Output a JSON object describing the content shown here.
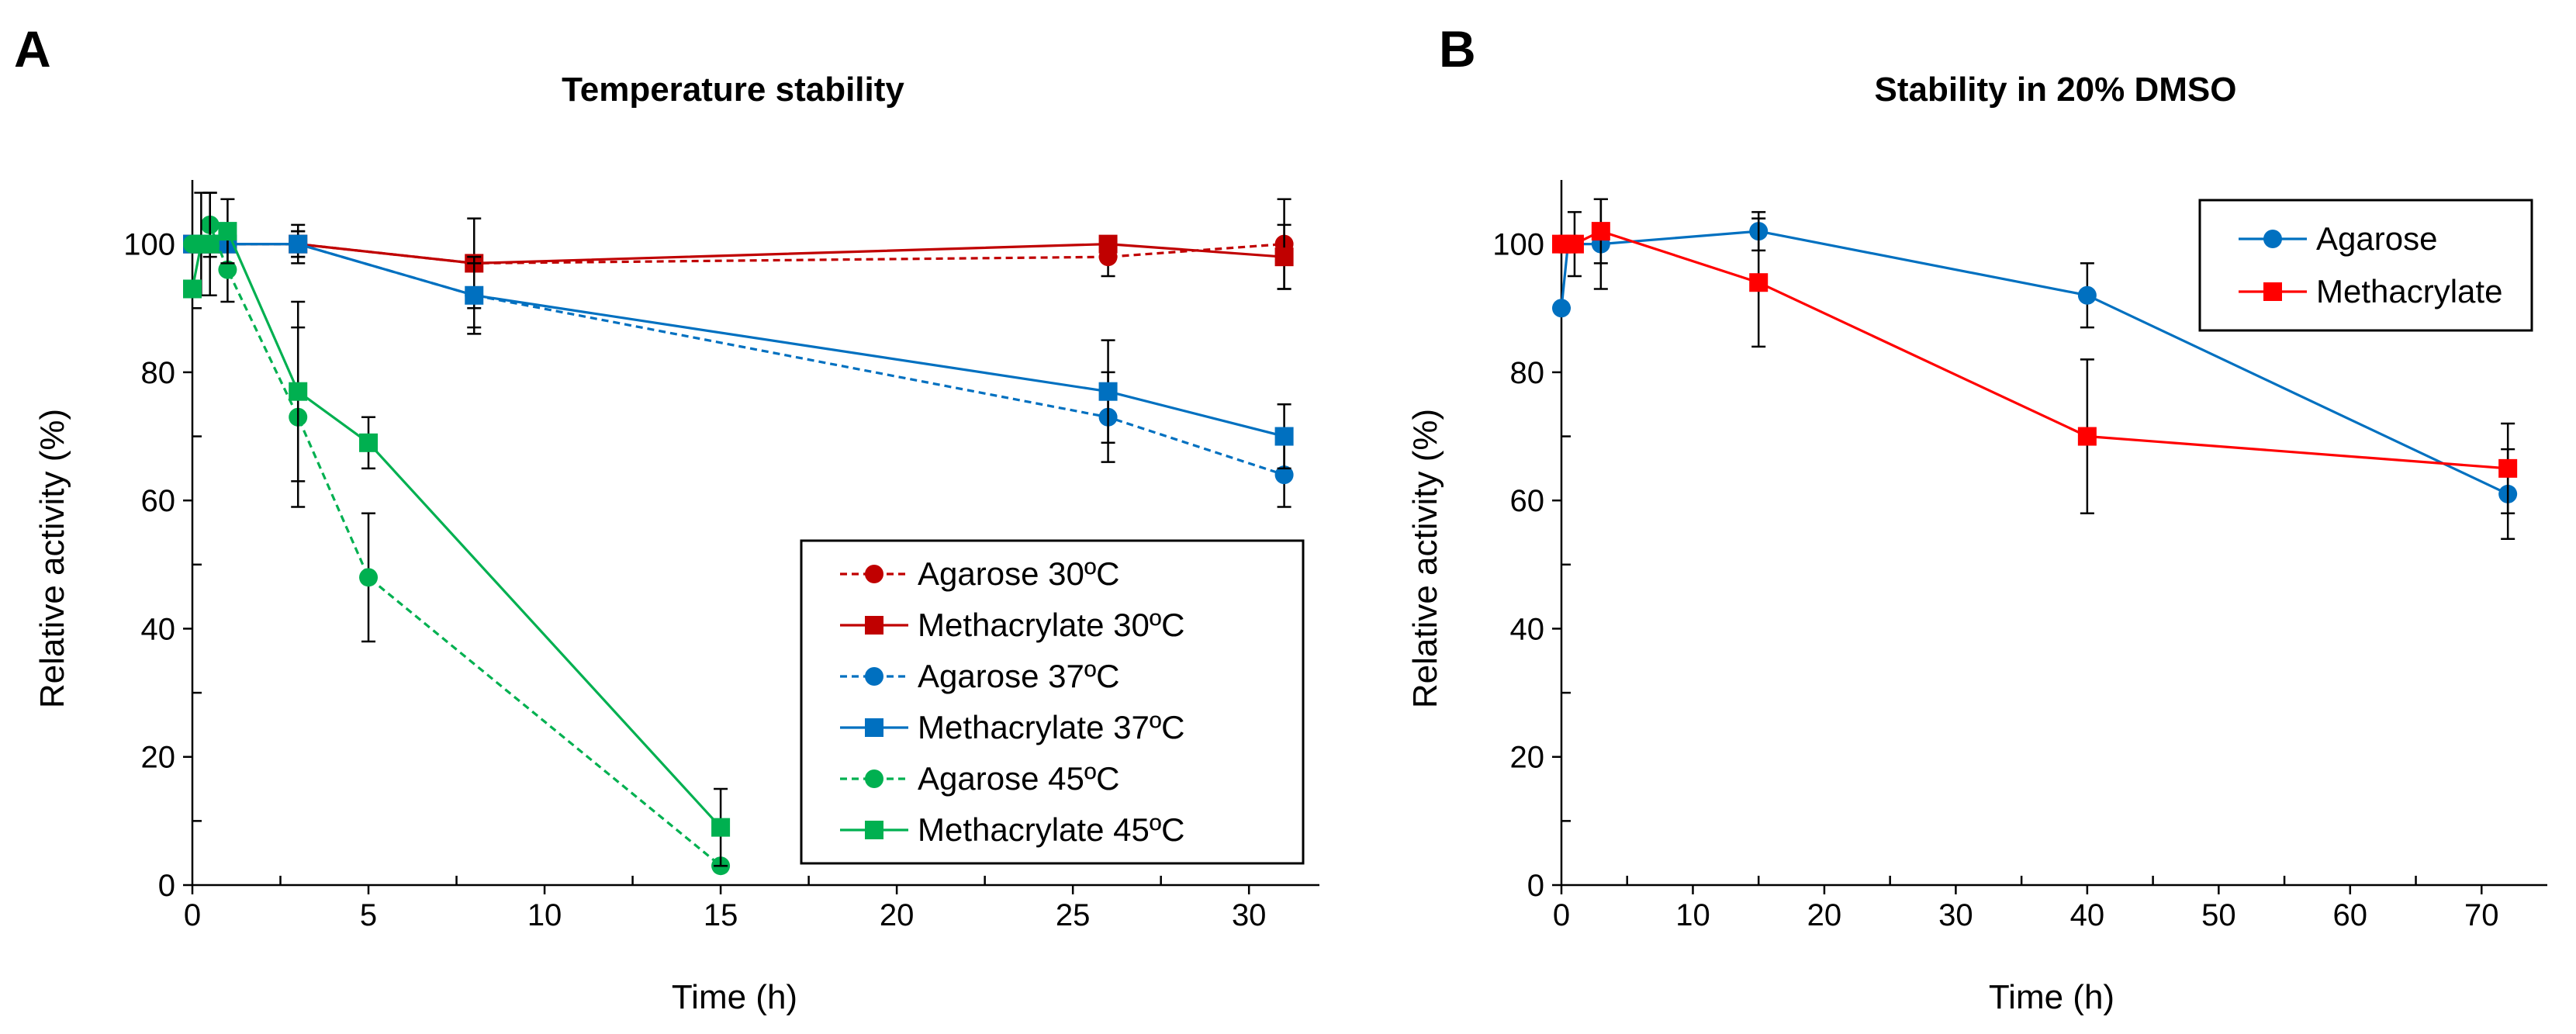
{
  "panel_labels": [
    "A",
    "B"
  ],
  "chart_data": [
    {
      "type": "line",
      "title": "Temperature stability",
      "xlabel": "Time (h)",
      "ylabel": "Relative activity (%)",
      "xlim": [
        0,
        32
      ],
      "ylim": [
        0,
        110
      ],
      "xticks": [
        0,
        5,
        10,
        15,
        20,
        25,
        30
      ],
      "yticks": [
        0,
        20,
        40,
        60,
        80,
        100
      ],
      "legend_position": "bottom-right",
      "series": [
        {
          "name": "Agarose 30ºC",
          "color": "#C00000",
          "dashed": true,
          "marker": "circle",
          "x": [
            0,
            0.25,
            0.5,
            1,
            3,
            8,
            26,
            31
          ],
          "y": [
            100,
            100,
            100,
            100,
            100,
            97,
            98,
            100
          ],
          "err": [
            0,
            0,
            0,
            0,
            0,
            0,
            3,
            7
          ]
        },
        {
          "name": "Methacrylate 30ºC",
          "color": "#C00000",
          "dashed": false,
          "marker": "square",
          "x": [
            0,
            0.25,
            0.5,
            1,
            3,
            8,
            26,
            31
          ],
          "y": [
            100,
            100,
            100,
            100,
            100,
            97,
            100,
            98
          ],
          "err": [
            0,
            0,
            0,
            0,
            3,
            7,
            0,
            5
          ]
        },
        {
          "name": "Agarose 37ºC",
          "color": "#0070C0",
          "dashed": true,
          "marker": "circle",
          "x": [
            0,
            0.25,
            0.5,
            1,
            3,
            8,
            26,
            31
          ],
          "y": [
            100,
            100,
            100,
            100,
            100,
            92,
            73,
            64
          ],
          "err": [
            0,
            0,
            0,
            0,
            2,
            6,
            7,
            5
          ]
        },
        {
          "name": "Methacrylate 37ºC",
          "color": "#0070C0",
          "dashed": false,
          "marker": "square",
          "x": [
            0,
            0.25,
            0.5,
            1,
            3,
            8,
            26,
            31
          ],
          "y": [
            100,
            100,
            100,
            100,
            100,
            92,
            77,
            70
          ],
          "err": [
            0,
            0,
            0,
            0,
            2,
            5,
            8,
            5
          ]
        },
        {
          "name": "Agarose 45ºC",
          "color": "#00B050",
          "dashed": true,
          "marker": "circle",
          "x": [
            0,
            0.25,
            0.5,
            1,
            3,
            5,
            15
          ],
          "y": [
            100,
            100,
            103,
            96,
            73,
            48,
            3
          ],
          "err": [
            0,
            0,
            5,
            5,
            14,
            10,
            0
          ]
        },
        {
          "name": "Methacrylate 45ºC",
          "color": "#00B050",
          "dashed": false,
          "marker": "square",
          "x": [
            0,
            0.25,
            0.5,
            1,
            3,
            5,
            15
          ],
          "y": [
            93,
            100,
            100,
            102,
            77,
            69,
            9
          ],
          "err": [
            0,
            8,
            8,
            5,
            14,
            4,
            6
          ]
        }
      ]
    },
    {
      "type": "line",
      "title": "Stability in 20% DMSO",
      "xlabel": "Time (h)",
      "ylabel": "Relative activity (%)",
      "xlim": [
        0,
        75
      ],
      "ylim": [
        0,
        110
      ],
      "xticks": [
        0,
        10,
        20,
        30,
        40,
        50,
        60,
        70
      ],
      "yticks": [
        0,
        20,
        40,
        60,
        80,
        100
      ],
      "legend_position": "top-right",
      "series": [
        {
          "name": "Agarose",
          "color": "#0070C0",
          "dashed": false,
          "marker": "circle",
          "x": [
            0,
            0.5,
            3,
            15,
            40,
            72
          ],
          "y": [
            90,
            100,
            100,
            102,
            92,
            61
          ],
          "err": [
            0,
            0,
            7,
            3,
            5,
            7
          ]
        },
        {
          "name": "Methacrylate",
          "color": "#FF0000",
          "dashed": false,
          "marker": "square",
          "x": [
            0,
            0.5,
            1,
            3,
            15,
            40,
            72
          ],
          "y": [
            100,
            100,
            100,
            102,
            94,
            70,
            65
          ],
          "err": [
            0,
            0,
            5,
            5,
            10,
            12,
            7
          ]
        }
      ]
    }
  ]
}
